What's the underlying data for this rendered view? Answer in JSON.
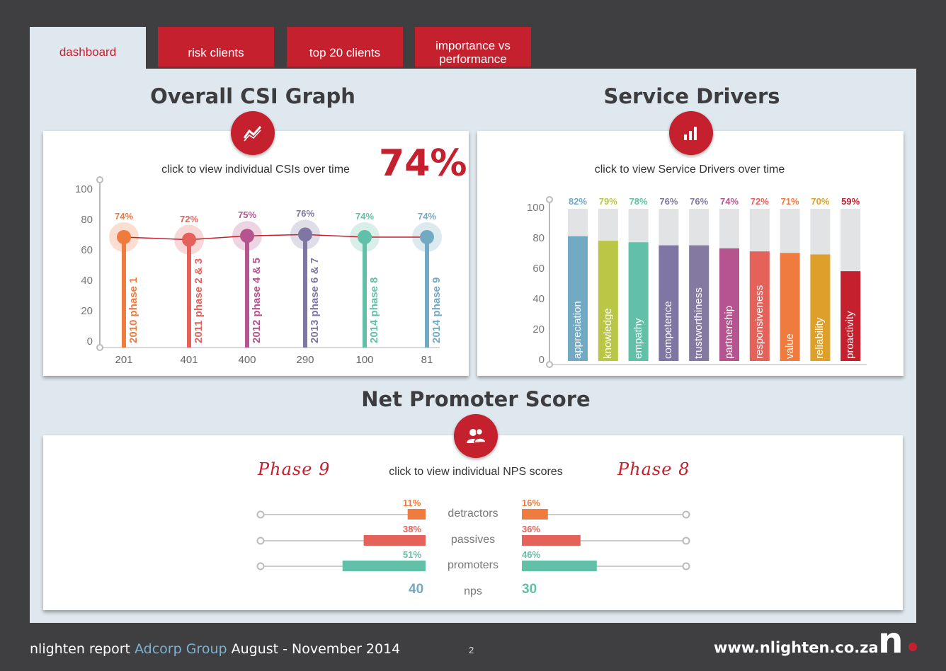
{
  "tabs": [
    {
      "label": "dashboard"
    },
    {
      "label": "risk clients"
    },
    {
      "label": "top 20 clients"
    },
    {
      "label": "importance vs performance"
    }
  ],
  "csi": {
    "title": "Overall CSI Graph",
    "caption": "click to view individual CSIs over time",
    "overall": "74%",
    "icon": "trend-line-icon",
    "y_ticks": [
      "100",
      "80",
      "60",
      "40",
      "20",
      "0"
    ],
    "points": [
      {
        "pct": "74%",
        "label": "2010 phase 1",
        "count": "201",
        "color": "#ef7b3f"
      },
      {
        "pct": "72%",
        "label": "2011 phase 2 & 3",
        "count": "401",
        "color": "#e5625a"
      },
      {
        "pct": "75%",
        "label": "2012 phase 4 & 5",
        "count": "400",
        "color": "#b6548f"
      },
      {
        "pct": "76%",
        "label": "2013 phase 6 & 7",
        "count": "290",
        "color": "#7f76a3"
      },
      {
        "pct": "74%",
        "label": "2014 phase 8",
        "count": "100",
        "color": "#62bfa8"
      },
      {
        "pct": "74%",
        "label": "2014 phase 9",
        "count": "81",
        "color": "#72aac4"
      }
    ]
  },
  "drivers": {
    "title": "Service Drivers",
    "caption": "click to view Service Drivers over time",
    "icon": "bar-chart-icon",
    "y_ticks": [
      "100",
      "80",
      "60",
      "40",
      "20",
      "0"
    ],
    "items": [
      {
        "label": "appreciation",
        "pct": "82%",
        "value": 82,
        "color": "#72aac4"
      },
      {
        "label": "knowledge",
        "pct": "79%",
        "value": 79,
        "color": "#b9c646"
      },
      {
        "label": "empathy",
        "pct": "78%",
        "value": 78,
        "color": "#62bfa8"
      },
      {
        "label": "competence",
        "pct": "76%",
        "value": 76,
        "color": "#7f76a3"
      },
      {
        "label": "trustworthiness",
        "pct": "76%",
        "value": 76,
        "color": "#8479a0"
      },
      {
        "label": "partnership",
        "pct": "74%",
        "value": 74,
        "color": "#b6548f"
      },
      {
        "label": "responsiveness",
        "pct": "72%",
        "value": 72,
        "color": "#e5625a"
      },
      {
        "label": "value",
        "pct": "71%",
        "value": 71,
        "color": "#ef7b3f"
      },
      {
        "label": "reliability",
        "pct": "70%",
        "value": 70,
        "color": "#dda02a"
      },
      {
        "label": "proactivity",
        "pct": "59%",
        "value": 59,
        "color": "#c4202e"
      }
    ]
  },
  "nps": {
    "title": "Net Promoter Score",
    "caption": "click to view individual NPS scores",
    "icon": "users-icon",
    "left_phase": "Phase 9",
    "right_phase": "Phase 8",
    "rows": [
      {
        "label": "detractors",
        "left_pct": "11%",
        "left_value": 11,
        "right_pct": "16%",
        "right_value": 16,
        "color": "#ef7b3f",
        "pct_color": "#ef7b3f"
      },
      {
        "label": "passives",
        "left_pct": "38%",
        "left_value": 38,
        "right_pct": "36%",
        "right_value": 36,
        "color": "#e5625a",
        "pct_color": "#e5625a"
      },
      {
        "label": "promoters",
        "left_pct": "51%",
        "left_value": 51,
        "right_pct": "46%",
        "right_value": 46,
        "color": "#62bfa8",
        "pct_color": "#62bfa8"
      }
    ],
    "score_label": "nps",
    "left_score": "40",
    "right_score": "30"
  },
  "footer": {
    "prefix": "nlighten report",
    "client": "Adcorp Group",
    "period": "August - November 2014",
    "page": "2",
    "url": "www.nlighten.co.za",
    "logo_letter": "n"
  }
}
